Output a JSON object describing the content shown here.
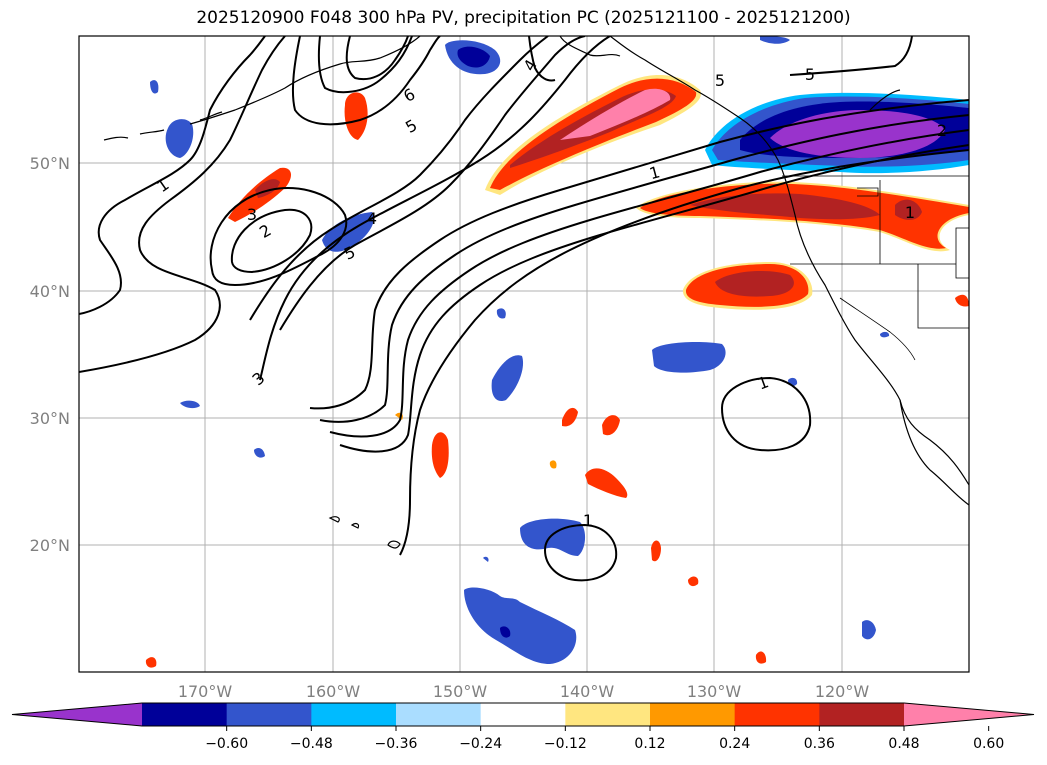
{
  "title": "2025120900 F048 300 hPa PV, precipitation PC (2025121100 - 2025121200)",
  "map": {
    "lat_labels": [
      "50°N",
      "40°N",
      "30°N",
      "20°N"
    ],
    "lon_labels": [
      "170°W",
      "160°W",
      "150°W",
      "140°W",
      "130°W",
      "120°W"
    ],
    "contour_labels": [
      "1",
      "1",
      "1",
      "1",
      "2",
      "3",
      "3",
      "4",
      "4",
      "5",
      "5",
      "5",
      "5",
      "6",
      "2",
      "1"
    ]
  },
  "colorbar": {
    "ticks": [
      "−0.60",
      "−0.48",
      "−0.36",
      "−0.24",
      "−0.12",
      "0.12",
      "0.24",
      "0.36",
      "0.48",
      "0.60"
    ],
    "colors": [
      "#9933cc",
      "#000099",
      "#3355cc",
      "#00bbff",
      "#aaddff",
      "#ffffff",
      "#ffe680",
      "#ff9900",
      "#ff3300",
      "#b22222",
      "#ff80aa"
    ]
  }
}
